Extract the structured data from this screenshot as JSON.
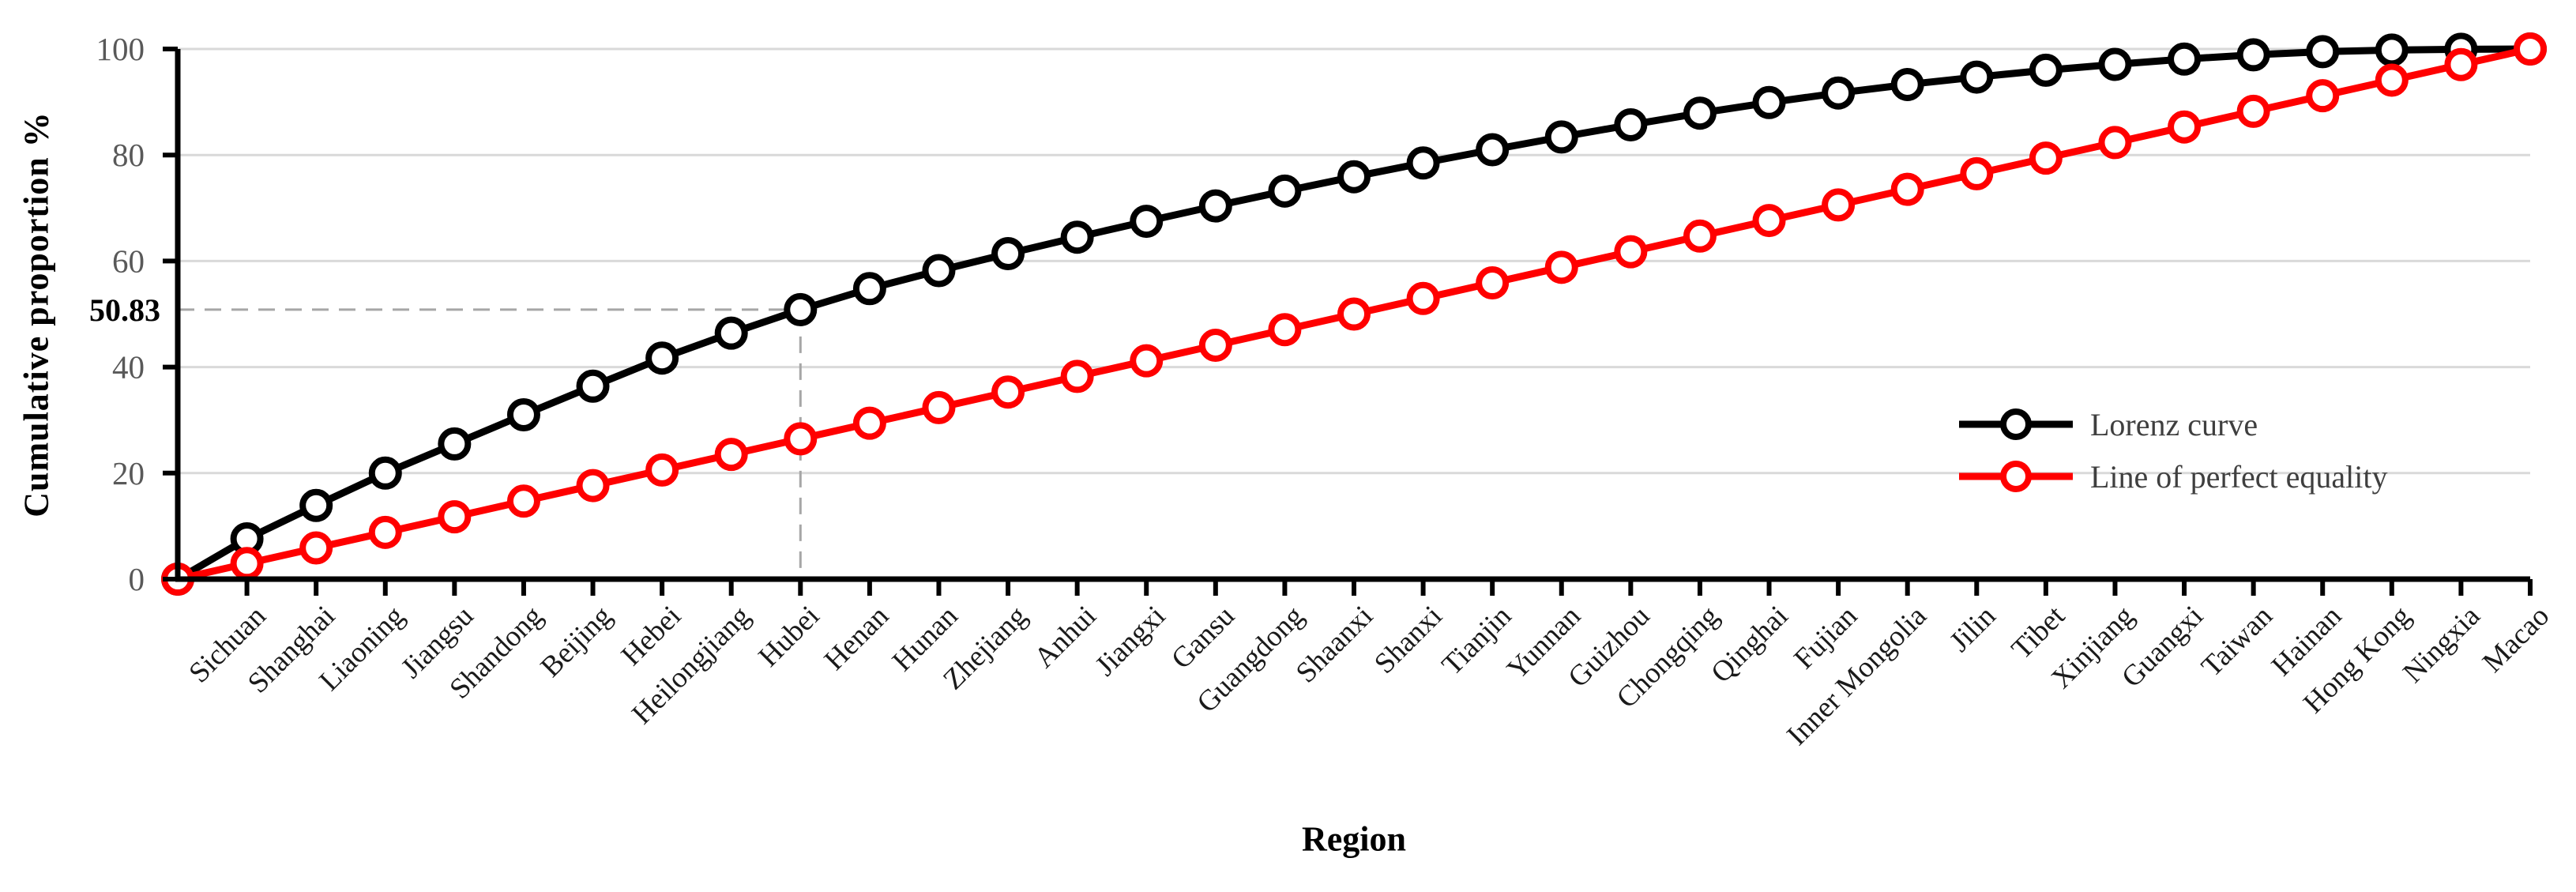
{
  "chart_data": {
    "type": "line",
    "title": "",
    "xlabel": "Region",
    "ylabel": "Cumulative proportion %",
    "ylim": [
      0,
      100
    ],
    "yticks": [
      0,
      20,
      40,
      60,
      80,
      100
    ],
    "grid": "horizontal-only",
    "legend_position": "right-middle",
    "has_unlabeled_origin_point": true,
    "categories": [
      "Sichuan",
      "Shanghai",
      "Liaoning",
      "Jiangsu",
      "Shandong",
      "Beijing",
      "Hebei",
      "Heilongjiang",
      "Hubei",
      "Henan",
      "Hunan",
      "Zhejiang",
      "Anhui",
      "Jiangxi",
      "Gansu",
      "Guangdong",
      "Shaanxi",
      "Shanxi",
      "Tianjin",
      "Yunnan",
      "Guizhou",
      "Chongqing",
      "Qinghai",
      "Fujian",
      "Inner Mongolia",
      "Jilin",
      "Tibet",
      "Xinjiang",
      "Guangxi",
      "Taiwan",
      "Hainan",
      "Hong Kong",
      "Ningxia",
      "Macao"
    ],
    "series": [
      {
        "name": "Lorenz curve",
        "color": "#000000",
        "marker": "open-circle",
        "values": [
          0,
          7.6,
          13.9,
          20.0,
          25.5,
          31.0,
          36.4,
          41.7,
          46.4,
          50.83,
          54.8,
          58.2,
          61.4,
          64.5,
          67.5,
          70.4,
          73.2,
          75.9,
          78.5,
          81.0,
          83.4,
          85.7,
          87.9,
          89.9,
          91.7,
          93.3,
          94.7,
          96.0,
          97.1,
          98.1,
          98.9,
          99.5,
          99.8,
          99.95,
          100
        ]
      },
      {
        "name": "Line of perfect equality",
        "color": "#ff0000",
        "marker": "open-circle",
        "values": [
          0,
          2.94,
          5.88,
          8.82,
          11.76,
          14.71,
          17.65,
          20.59,
          23.53,
          26.47,
          29.41,
          32.35,
          35.29,
          38.24,
          41.18,
          44.12,
          47.06,
          50.0,
          52.94,
          55.88,
          58.82,
          61.76,
          64.71,
          67.65,
          70.59,
          73.53,
          76.47,
          79.41,
          82.35,
          85.29,
          88.24,
          91.18,
          94.12,
          97.06,
          100
        ]
      }
    ],
    "annotation": {
      "label": "50.83",
      "value": 50.83,
      "category": "Hubei",
      "style": "dashed-guide-to-axes",
      "line_color": "#a6a6a6"
    },
    "colors": {
      "axis": "#000000",
      "gridline": "#d9d9d9",
      "tick_label": "#595959",
      "category_label": "#1a1a1a",
      "annotation_label": "#000000",
      "legend_text": "#3f3f3f",
      "background": "#ffffff"
    }
  }
}
